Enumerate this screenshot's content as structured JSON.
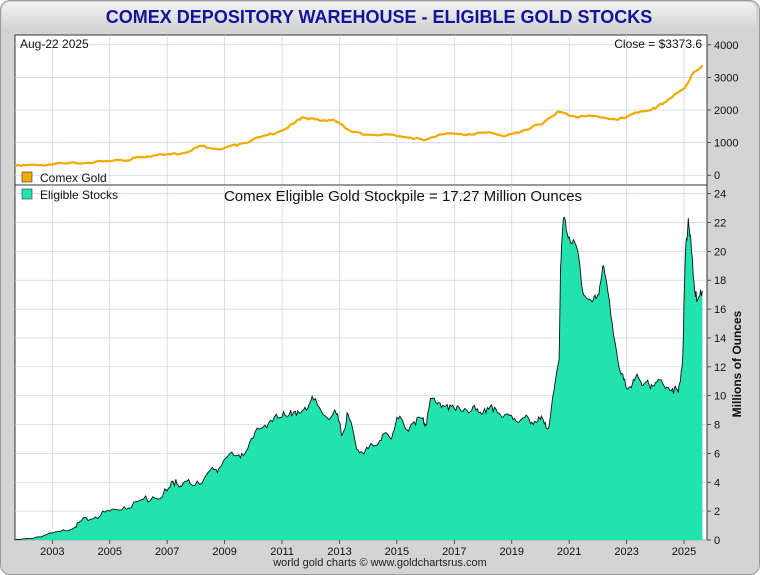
{
  "title": "COMEX DEPOSITORY WAREHOUSE - ELIGIBLE GOLD STOCKS",
  "footer": "world gold charts © www.goldchartsrus.com",
  "colors": {
    "title": "#14149a",
    "gold_line": "#f2a900",
    "stocks_fill": "#22e3ad",
    "stocks_line": "#111111"
  },
  "chart_data": [
    {
      "type": "line",
      "date_label": "Aug-22  2025",
      "close_label": "Close = $3373.6",
      "legend": [
        {
          "name": "Comex Gold",
          "color": "#f2a900"
        }
      ],
      "y_ticks": [
        0,
        1000,
        2000,
        3000,
        4000
      ],
      "ylim": [
        -300,
        4300
      ],
      "xlim": [
        2001.7,
        2025.8
      ],
      "grid": true,
      "series": [
        {
          "name": "Comex Gold",
          "x": [
            2001.7,
            2002.5,
            2003.5,
            2004.5,
            2005.5,
            2006.0,
            2006.5,
            2007.5,
            2008.2,
            2008.9,
            2009.5,
            2010.5,
            2011.2,
            2011.7,
            2012.3,
            2012.8,
            2013.3,
            2013.8,
            2014.5,
            2015.5,
            2015.9,
            2016.5,
            2017.5,
            2018.3,
            2018.8,
            2019.5,
            2020.0,
            2020.6,
            2021.2,
            2022.0,
            2022.7,
            2023.0,
            2023.5,
            2024.0,
            2024.5,
            2025.0,
            2025.3,
            2025.64
          ],
          "y": [
            280,
            310,
            360,
            410,
            440,
            550,
            600,
            670,
            900,
            800,
            950,
            1230,
            1450,
            1780,
            1680,
            1700,
            1400,
            1250,
            1250,
            1150,
            1080,
            1250,
            1260,
            1310,
            1200,
            1400,
            1560,
            1950,
            1800,
            1800,
            1700,
            1800,
            1950,
            2050,
            2350,
            2650,
            3100,
            3374
          ]
        }
      ]
    },
    {
      "type": "area",
      "headline": "Comex Eligible Gold Stockpile = 17.27 Million Ounces",
      "legend": [
        {
          "name": "Eligible Stocks",
          "color": "#22e3ad"
        }
      ],
      "ylabel": "Millions of Ounces",
      "y_ticks": [
        0,
        2,
        4,
        6,
        8,
        10,
        12,
        14,
        16,
        18,
        20,
        22,
        24
      ],
      "ylim": [
        0,
        24.6
      ],
      "xlim": [
        2001.7,
        2025.8
      ],
      "x_ticks": [
        "2003",
        "2005",
        "2007",
        "2009",
        "2011",
        "2013",
        "2015",
        "2017",
        "2019",
        "2021",
        "2023",
        "2025"
      ],
      "grid": true,
      "series": [
        {
          "name": "Eligible Stocks",
          "x": [
            2001.7,
            2002.2,
            2002.7,
            2003.3,
            2003.8,
            2004.0,
            2004.5,
            2005.0,
            2005.5,
            2006.0,
            2006.5,
            2007.0,
            2007.3,
            2007.5,
            2007.8,
            2008.3,
            2008.7,
            2009.0,
            2009.5,
            2009.8,
            2010.2,
            2010.6,
            2011.0,
            2011.3,
            2011.5,
            2011.8,
            2012.1,
            2012.5,
            2012.9,
            2013.1,
            2013.3,
            2013.6,
            2013.9,
            2014.2,
            2014.5,
            2014.8,
            2015.0,
            2015.3,
            2015.6,
            2015.9,
            2016.0,
            2016.2,
            2016.5,
            2016.8,
            2017.1,
            2017.5,
            2017.8,
            2018.1,
            2018.4,
            2018.7,
            2019.0,
            2019.3,
            2019.6,
            2019.9,
            2020.1,
            2020.3,
            2020.65,
            2020.7,
            2020.8,
            2021.0,
            2021.3,
            2021.5,
            2021.8,
            2022.0,
            2022.2,
            2022.5,
            2022.8,
            2023.0,
            2023.2,
            2023.4,
            2023.6,
            2023.8,
            2024.0,
            2024.3,
            2024.6,
            2024.8,
            2024.95,
            2025.05,
            2025.15,
            2025.25,
            2025.35,
            2025.45,
            2025.64
          ],
          "y": [
            0.0,
            0.1,
            0.3,
            0.6,
            0.9,
            1.3,
            1.6,
            2.0,
            2.3,
            2.7,
            3.0,
            3.4,
            4.2,
            3.7,
            3.9,
            4.3,
            4.9,
            5.6,
            5.9,
            6.3,
            7.7,
            8.3,
            8.5,
            9.0,
            8.6,
            9.2,
            9.7,
            8.6,
            8.7,
            7.3,
            8.7,
            6.3,
            6.2,
            6.5,
            7.3,
            7.0,
            8.5,
            7.7,
            8.2,
            8.4,
            8.0,
            9.8,
            9.5,
            9.0,
            9.3,
            8.8,
            9.1,
            8.8,
            9.2,
            8.5,
            8.6,
            8.3,
            8.4,
            8.2,
            8.3,
            7.9,
            12.5,
            19.0,
            22.3,
            21.0,
            20.0,
            17.0,
            16.5,
            17.0,
            19.0,
            15.0,
            11.5,
            10.5,
            10.8,
            11.3,
            10.8,
            10.7,
            10.9,
            10.7,
            10.5,
            10.2,
            12.5,
            20.0,
            22.3,
            20.3,
            17.8,
            16.5,
            17.27
          ]
        }
      ]
    }
  ]
}
